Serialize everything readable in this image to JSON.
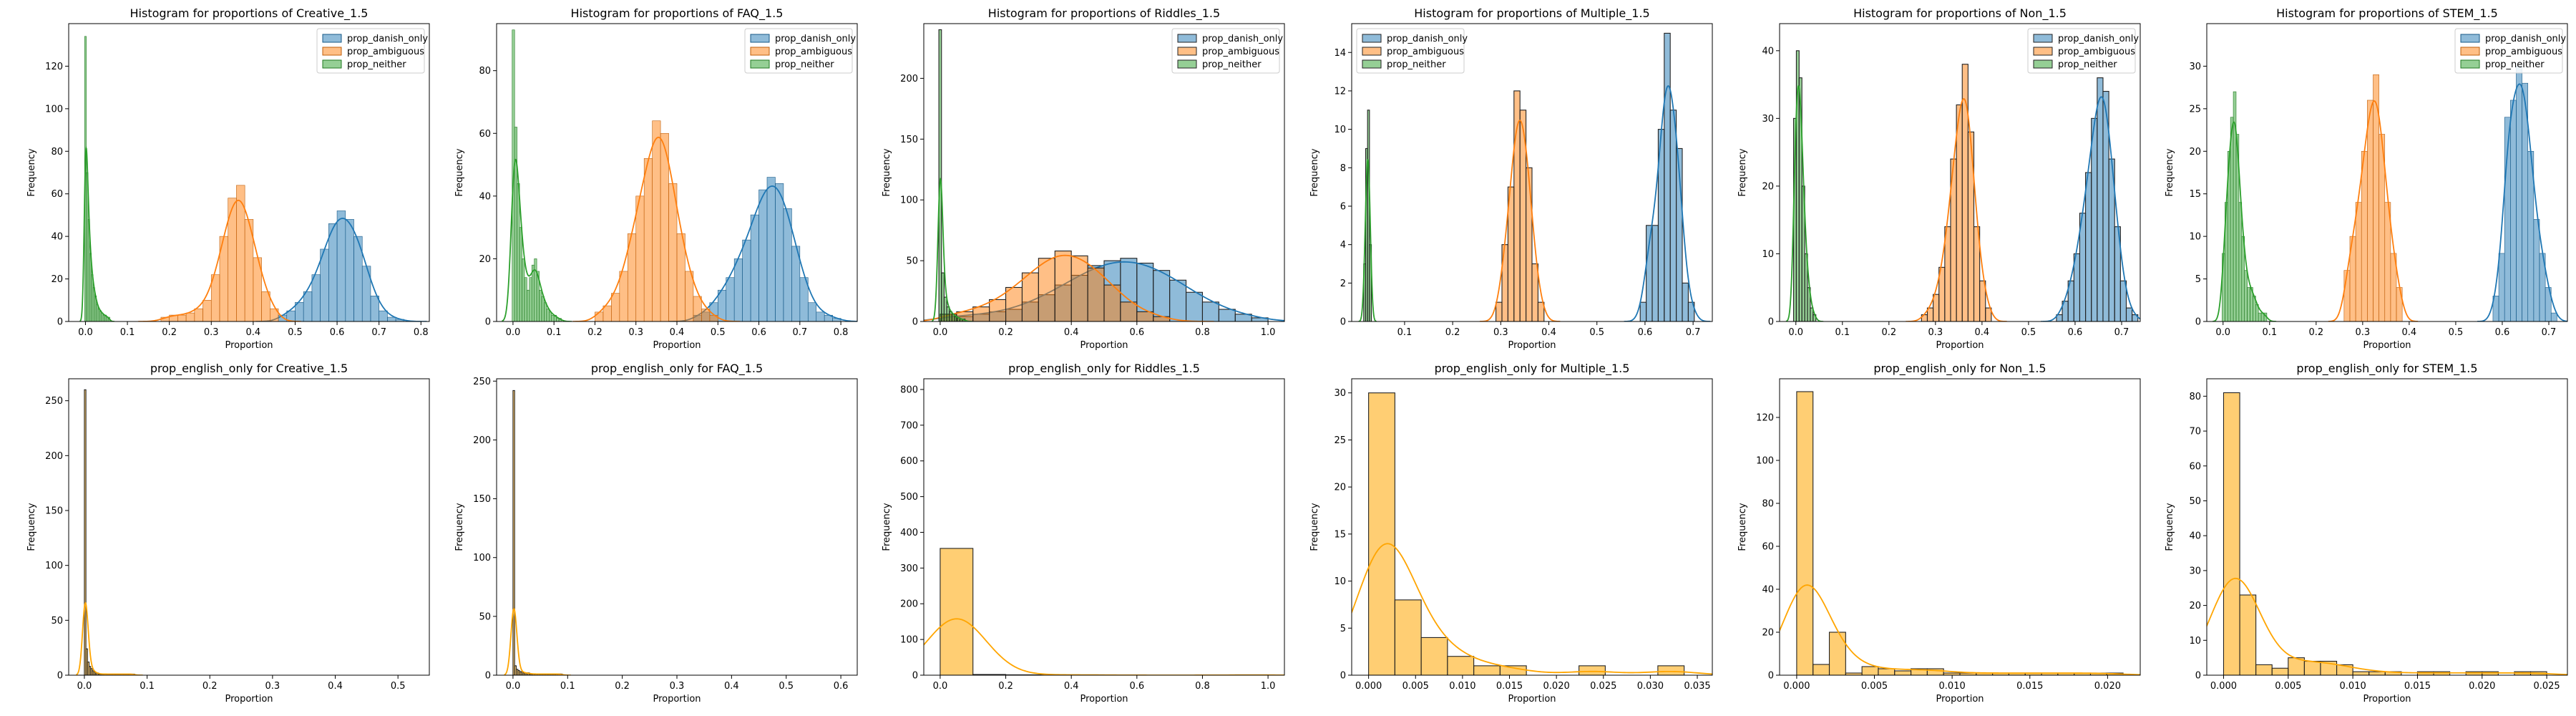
{
  "chart_data": [
    {
      "type": "histogram",
      "title": "Histogram for proportions of Creative_1.5",
      "xlabel": "Proportion",
      "ylabel": "Frequency",
      "xlim": [
        -0.04,
        0.82
      ],
      "ylim": [
        0,
        140
      ],
      "xticks": [
        "0.0",
        "0.1",
        "0.2",
        "0.3",
        "0.4",
        "0.5",
        "0.6",
        "0.7",
        "0.8"
      ],
      "xtick_values": [
        0,
        0.1,
        0.2,
        0.3,
        0.4,
        0.5,
        0.6,
        0.7,
        0.8
      ],
      "yticks": [
        "0",
        "20",
        "40",
        "60",
        "80",
        "100",
        "120"
      ],
      "ytick_values": [
        0,
        20,
        40,
        60,
        80,
        100,
        120
      ],
      "legend_position": "top-right",
      "series": [
        {
          "name": "prop_danish_only",
          "bin_start": 0.46,
          "bin_width": 0.02,
          "counts": [
            3,
            5,
            9,
            14,
            22,
            34,
            46,
            52,
            48,
            40,
            26,
            12,
            5,
            2,
            1
          ],
          "kde": true
        },
        {
          "name": "prop_ambiguous",
          "bin_start": 0.18,
          "bin_width": 0.02,
          "counts": [
            2,
            3,
            3,
            4,
            6,
            10,
            22,
            40,
            58,
            64,
            48,
            30,
            14,
            6
          ],
          "kde": true
        },
        {
          "name": "prop_neither",
          "bin_start": -0.002,
          "bin_width": 0.004,
          "counts": [
            134,
            70,
            48,
            32,
            22,
            16,
            12,
            8,
            6,
            5,
            4,
            3,
            3,
            2,
            2
          ],
          "kde": true
        }
      ]
    },
    {
      "type": "histogram",
      "title": "Histogram for proportions of FAQ_1.5",
      "xlabel": "Proportion",
      "ylabel": "Frequency",
      "xlim": [
        -0.04,
        0.84
      ],
      "ylim": [
        0,
        95
      ],
      "xticks": [
        "0.0",
        "0.1",
        "0.2",
        "0.3",
        "0.4",
        "0.5",
        "0.6",
        "0.7",
        "0.8"
      ],
      "xtick_values": [
        0,
        0.1,
        0.2,
        0.3,
        0.4,
        0.5,
        0.6,
        0.7,
        0.8
      ],
      "yticks": [
        "0",
        "20",
        "40",
        "60",
        "80"
      ],
      "ytick_values": [
        0,
        20,
        40,
        60,
        80
      ],
      "legend_position": "top-right",
      "series": [
        {
          "name": "prop_danish_only",
          "bin_start": 0.44,
          "bin_width": 0.02,
          "counts": [
            2,
            3,
            6,
            10,
            14,
            20,
            26,
            34,
            42,
            46,
            44,
            36,
            24,
            14,
            6,
            3,
            2,
            1
          ],
          "kde": true
        },
        {
          "name": "prop_ambiguous",
          "bin_start": 0.2,
          "bin_width": 0.02,
          "counts": [
            3,
            5,
            9,
            16,
            28,
            40,
            52,
            64,
            60,
            44,
            28,
            16,
            8,
            4,
            2
          ],
          "kde": true
        },
        {
          "name": "prop_neither",
          "bin_start": -0.002,
          "bin_width": 0.006,
          "counts": [
            93,
            62,
            44,
            30,
            20,
            14,
            10,
            14,
            18,
            20,
            16,
            10,
            8,
            6,
            4,
            3,
            2,
            2,
            1,
            1
          ],
          "kde": true
        }
      ]
    },
    {
      "type": "histogram",
      "title": "Histogram for proportions of Riddles_1.5",
      "xlabel": "Proportion",
      "ylabel": "Frequency",
      "xlim": [
        -0.05,
        1.05
      ],
      "ylim": [
        0,
        245
      ],
      "xticks": [
        "0.0",
        "0.2",
        "0.4",
        "0.6",
        "0.8",
        "1.0"
      ],
      "xtick_values": [
        0,
        0.2,
        0.4,
        0.6,
        0.8,
        1.0
      ],
      "yticks": [
        "0",
        "50",
        "100",
        "150",
        "200"
      ],
      "ytick_values": [
        0,
        50,
        100,
        150,
        200
      ],
      "legend_position": "top-right",
      "series": [
        {
          "name": "prop_danish_only",
          "bin_start": 0.0,
          "bin_width": 0.05,
          "counts": [
            6,
            4,
            6,
            8,
            10,
            16,
            22,
            30,
            38,
            46,
            50,
            52,
            48,
            42,
            34,
            24,
            16,
            10,
            6,
            3
          ],
          "kde": true
        },
        {
          "name": "prop_ambiguous",
          "bin_start": 0.0,
          "bin_width": 0.05,
          "counts": [
            6,
            8,
            12,
            18,
            28,
            40,
            52,
            58,
            54,
            44,
            30,
            16,
            8,
            4
          ],
          "kde": true
        },
        {
          "name": "prop_neither",
          "bin_start": -0.004,
          "bin_width": 0.008,
          "counts": [
            240,
            40,
            20,
            12,
            8,
            6,
            4,
            3,
            2,
            2
          ],
          "kde": true
        }
      ]
    },
    {
      "type": "histogram",
      "title": "Histogram for proportions of Multiple_1.5",
      "xlabel": "Proportion",
      "ylabel": "Frequency",
      "xlim": [
        -0.01,
        0.74
      ],
      "ylim": [
        0,
        15.5
      ],
      "xticks": [
        "0.1",
        "0.2",
        "0.3",
        "0.4",
        "0.5",
        "0.6",
        "0.7"
      ],
      "xtick_values": [
        0.1,
        0.2,
        0.3,
        0.4,
        0.5,
        0.6,
        0.7
      ],
      "yticks": [
        "0",
        "2",
        "4",
        "6",
        "8",
        "10",
        "12",
        "14"
      ],
      "ytick_values": [
        0,
        2,
        4,
        6,
        8,
        10,
        12,
        14
      ],
      "legend_position": "top-left",
      "series": [
        {
          "name": "prop_danish_only",
          "bin_start": 0.59,
          "bin_width": 0.0125,
          "counts": [
            1,
            5,
            5,
            10,
            15,
            11,
            9,
            2,
            1
          ],
          "kde": true
        },
        {
          "name": "prop_ambiguous",
          "bin_start": 0.29,
          "bin_width": 0.0125,
          "counts": [
            1,
            4,
            7,
            12,
            11,
            8,
            3,
            1
          ],
          "kde": true
        },
        {
          "name": "prop_neither",
          "bin_start": 0.015,
          "bin_width": 0.004,
          "counts": [
            3,
            9,
            11,
            4
          ],
          "kde": true
        }
      ]
    },
    {
      "type": "histogram",
      "title": "Histogram for proportions of Non_1.5",
      "xlabel": "Proportion",
      "ylabel": "Frequency",
      "xlim": [
        -0.035,
        0.74
      ],
      "ylim": [
        0,
        44
      ],
      "xticks": [
        "0.0",
        "0.1",
        "0.2",
        "0.3",
        "0.4",
        "0.5",
        "0.6",
        "0.7"
      ],
      "xtick_values": [
        0,
        0.1,
        0.2,
        0.3,
        0.4,
        0.5,
        0.6,
        0.7
      ],
      "yticks": [
        "0",
        "10",
        "20",
        "30",
        "40"
      ],
      "ytick_values": [
        0,
        10,
        20,
        30,
        40
      ],
      "legend_position": "top-right",
      "series": [
        {
          "name": "prop_danish_only",
          "bin_start": 0.56,
          "bin_width": 0.0125,
          "counts": [
            1,
            3,
            6,
            10,
            16,
            22,
            30,
            36,
            34,
            24,
            14,
            6,
            2,
            1
          ],
          "kde": true
        },
        {
          "name": "prop_ambiguous",
          "bin_start": 0.27,
          "bin_width": 0.0125,
          "counts": [
            1,
            2,
            4,
            8,
            14,
            24,
            32,
            38,
            28,
            14,
            6,
            2
          ],
          "kde": true
        },
        {
          "name": "prop_neither",
          "bin_start": -0.005,
          "bin_width": 0.006,
          "counts": [
            30,
            40,
            36,
            20,
            10,
            5,
            2,
            1
          ],
          "kde": true
        }
      ]
    },
    {
      "type": "histogram",
      "title": "Histogram for proportions of STEM_1.5",
      "xlabel": "Proportion",
      "ylabel": "Frequency",
      "xlim": [
        -0.035,
        0.74
      ],
      "ylim": [
        0,
        35
      ],
      "xticks": [
        "0.0",
        "0.1",
        "0.2",
        "0.3",
        "0.4",
        "0.5",
        "0.6",
        "0.7"
      ],
      "xtick_values": [
        0,
        0.1,
        0.2,
        0.3,
        0.4,
        0.5,
        0.6,
        0.7
      ],
      "yticks": [
        "0",
        "5",
        "10",
        "15",
        "20",
        "25",
        "30"
      ],
      "ytick_values": [
        0,
        5,
        10,
        15,
        20,
        25,
        30
      ],
      "legend_position": "top-right",
      "series": [
        {
          "name": "prop_danish_only",
          "bin_start": 0.58,
          "bin_width": 0.0125,
          "counts": [
            3,
            8,
            24,
            26,
            30,
            28,
            20,
            12,
            8,
            4,
            1
          ],
          "kde": true
        },
        {
          "name": "prop_ambiguous",
          "bin_start": 0.26,
          "bin_width": 0.0125,
          "counts": [
            6,
            10,
            14,
            20,
            26,
            29,
            22,
            14,
            8,
            4
          ],
          "kde": true
        },
        {
          "name": "prop_neither",
          "bin_start": -0.002,
          "bin_width": 0.006,
          "counts": [
            8,
            14,
            20,
            24,
            27,
            22,
            14,
            10,
            6,
            4,
            4,
            3,
            2,
            1,
            1,
            1
          ],
          "kde": true
        }
      ]
    },
    {
      "type": "histogram",
      "title": "prop_english_only for Creative_1.5",
      "xlabel": "Proportion",
      "ylabel": "Frequency",
      "xlim": [
        -0.025,
        0.55
      ],
      "ylim": [
        0,
        270
      ],
      "xticks": [
        "0.0",
        "0.1",
        "0.2",
        "0.3",
        "0.4",
        "0.5"
      ],
      "xtick_values": [
        0,
        0.1,
        0.2,
        0.3,
        0.4,
        0.5
      ],
      "yticks": [
        "0",
        "50",
        "100",
        "150",
        "200",
        "250"
      ],
      "ytick_values": [
        0,
        50,
        100,
        150,
        200,
        250
      ],
      "series": [
        {
          "name": "prop_english_only",
          "bin_start": 0.0,
          "bin_width": 0.0025,
          "counts": [
            260,
            24,
            12,
            8,
            6,
            4,
            3,
            2,
            2,
            1,
            1,
            1,
            1,
            1,
            1,
            1,
            1,
            1,
            1,
            1,
            1,
            1,
            1,
            1,
            1,
            1,
            1,
            1,
            1,
            1,
            1,
            1
          ],
          "kde": true
        }
      ]
    },
    {
      "type": "histogram",
      "title": "prop_english_only for FAQ_1.5",
      "xlabel": "Proportion",
      "ylabel": "Frequency",
      "xlim": [
        -0.03,
        0.63
      ],
      "ylim": [
        0,
        252
      ],
      "xticks": [
        "0.0",
        "0.1",
        "0.2",
        "0.3",
        "0.4",
        "0.5",
        "0.6"
      ],
      "xtick_values": [
        0,
        0.1,
        0.2,
        0.3,
        0.4,
        0.5,
        0.6
      ],
      "yticks": [
        "0",
        "50",
        "100",
        "150",
        "200",
        "250"
      ],
      "ytick_values": [
        0,
        50,
        100,
        150,
        200,
        250
      ],
      "series": [
        {
          "name": "prop_english_only",
          "bin_start": 0.0,
          "bin_width": 0.003,
          "counts": [
            242,
            8,
            5,
            4,
            3,
            3,
            2,
            2,
            2,
            2,
            1,
            1,
            1,
            1,
            1,
            1,
            1,
            1,
            1,
            1,
            1,
            1,
            1,
            1,
            1,
            1,
            1,
            1,
            1,
            1
          ],
          "kde": true
        }
      ]
    },
    {
      "type": "histogram",
      "title": "prop_english_only for Riddles_1.5",
      "xlabel": "Proportion",
      "ylabel": "Frequency",
      "xlim": [
        -0.05,
        1.05
      ],
      "ylim": [
        0,
        830
      ],
      "xticks": [
        "0.0",
        "0.2",
        "0.4",
        "0.6",
        "0.8",
        "1.0"
      ],
      "xtick_values": [
        0,
        0.2,
        0.4,
        0.6,
        0.8,
        1.0
      ],
      "yticks": [
        "0",
        "100",
        "200",
        "300",
        "400",
        "500",
        "600",
        "700",
        "800"
      ],
      "ytick_values": [
        0,
        100,
        200,
        300,
        400,
        500,
        600,
        700,
        800
      ],
      "series": [
        {
          "name": "prop_english_only",
          "bin_start": 0.0,
          "bin_width": 0.1,
          "counts": [
            355,
            2,
            1,
            1,
            1,
            0,
            0,
            0,
            0,
            1
          ],
          "kde": true
        }
      ]
    },
    {
      "type": "histogram",
      "title": "prop_english_only for Multiple_1.5",
      "xlabel": "Proportion",
      "ylabel": "Frequency",
      "xlim": [
        -0.0018,
        0.0366
      ],
      "ylim": [
        0,
        31.5
      ],
      "xticks": [
        "0.000",
        "0.005",
        "0.010",
        "0.015",
        "0.020",
        "0.025",
        "0.030",
        "0.035"
      ],
      "xtick_values": [
        0,
        0.005,
        0.01,
        0.015,
        0.02,
        0.025,
        0.03,
        0.035
      ],
      "yticks": [
        "0",
        "5",
        "10",
        "15",
        "20",
        "25",
        "30"
      ],
      "ytick_values": [
        0,
        5,
        10,
        15,
        20,
        25,
        30
      ],
      "series": [
        {
          "name": "prop_english_only",
          "bin_start": 0.0,
          "bin_width": 0.0028,
          "counts": [
            30,
            8,
            4,
            2,
            1,
            1,
            0,
            0,
            1,
            0,
            0,
            1
          ],
          "kde": true
        }
      ]
    },
    {
      "type": "histogram",
      "title": "prop_english_only for Non_1.5",
      "xlabel": "Proportion",
      "ylabel": "Frequency",
      "xlim": [
        -0.0011,
        0.0221
      ],
      "ylim": [
        0,
        138
      ],
      "xticks": [
        "0.000",
        "0.005",
        "0.010",
        "0.015",
        "0.020"
      ],
      "xtick_values": [
        0,
        0.005,
        0.01,
        0.015,
        0.02
      ],
      "yticks": [
        "0",
        "20",
        "40",
        "60",
        "80",
        "100",
        "120"
      ],
      "ytick_values": [
        0,
        20,
        40,
        60,
        80,
        100,
        120
      ],
      "series": [
        {
          "name": "prop_english_only",
          "bin_start": 0.0,
          "bin_width": 0.00105,
          "counts": [
            132,
            5,
            20,
            1,
            4,
            3,
            2,
            3,
            3,
            1,
            1,
            1,
            1,
            1,
            1,
            1,
            1,
            1,
            1,
            1
          ],
          "kde": true
        }
      ]
    },
    {
      "type": "histogram",
      "title": "prop_english_only for STEM_1.5",
      "xlabel": "Proportion",
      "ylabel": "Frequency",
      "xlim": [
        -0.0013,
        0.0266
      ],
      "ylim": [
        0,
        85
      ],
      "xticks": [
        "0.000",
        "0.005",
        "0.010",
        "0.015",
        "0.020",
        "0.025"
      ],
      "xtick_values": [
        0,
        0.005,
        0.01,
        0.015,
        0.02,
        0.025
      ],
      "yticks": [
        "0",
        "10",
        "20",
        "30",
        "40",
        "50",
        "60",
        "70",
        "80"
      ],
      "ytick_values": [
        0,
        10,
        20,
        30,
        40,
        50,
        60,
        70,
        80
      ],
      "series": [
        {
          "name": "prop_english_only",
          "bin_start": 0.0,
          "bin_width": 0.00125,
          "counts": [
            81,
            23,
            3,
            2,
            5,
            4,
            4,
            3,
            1,
            1,
            1,
            0,
            1,
            1,
            0,
            1,
            1,
            0,
            1,
            1
          ],
          "kde": true
        }
      ]
    }
  ],
  "colors": {
    "prop_danish_only": "#1f77b4",
    "prop_ambiguous": "#ff7f0e",
    "prop_neither": "#2ca02c",
    "prop_english_only": "#ffa500"
  }
}
